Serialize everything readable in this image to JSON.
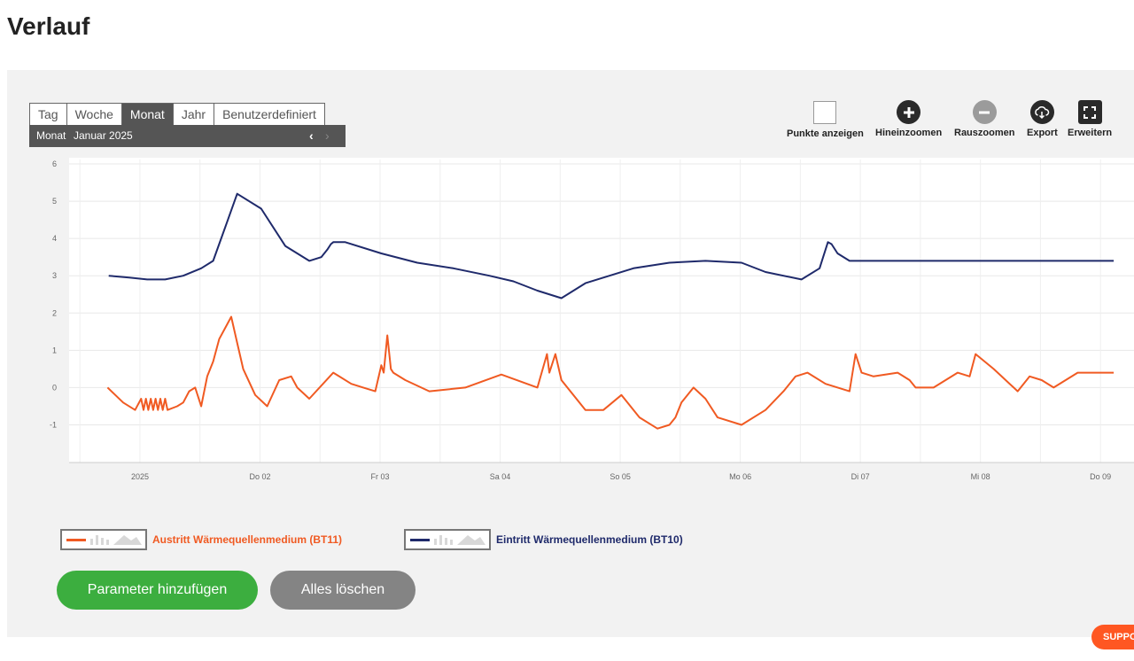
{
  "page": {
    "title": "Verlauf"
  },
  "range_tabs": [
    {
      "label": "Tag",
      "active": false
    },
    {
      "label": "Woche",
      "active": false
    },
    {
      "label": "Monat",
      "active": true
    },
    {
      "label": "Jahr",
      "active": false
    },
    {
      "label": "Benutzerdefiniert",
      "active": false
    }
  ],
  "period": {
    "label": "Monat",
    "value": "Januar 2025",
    "prev_icon": "chevron-left-icon",
    "next_icon": "chevron-right-icon"
  },
  "tools": {
    "show_points": {
      "label": "Punkte anzeigen",
      "icon": "checkbox-icon",
      "checked": false
    },
    "zoom_in": {
      "label": "Hineinzoomen",
      "icon": "plus-circle-icon"
    },
    "zoom_out": {
      "label": "Rauszoomen",
      "icon": "minus-circle-icon",
      "disabled": true
    },
    "export": {
      "label": "Export",
      "icon": "cloud-download-icon"
    },
    "expand": {
      "label": "Erweitern",
      "icon": "fullscreen-icon"
    }
  },
  "chart_data": {
    "type": "line",
    "ylim": [
      -1.7,
      6
    ],
    "yticks": [
      "6",
      "5",
      "4",
      "3",
      "2",
      "1",
      "0",
      "-1"
    ],
    "xlim": [
      0,
      8.8
    ],
    "xticks": [
      {
        "x": 0.59,
        "label": "2025"
      },
      {
        "x": 1.59,
        "label": "Do 02"
      },
      {
        "x": 2.59,
        "label": "Fr 03"
      },
      {
        "x": 3.59,
        "label": "Sa 04"
      },
      {
        "x": 4.59,
        "label": "So 05"
      },
      {
        "x": 5.59,
        "label": "Mo 06"
      },
      {
        "x": 6.59,
        "label": "Di 07"
      },
      {
        "x": 7.59,
        "label": "Mi 08"
      },
      {
        "x": 8.59,
        "label": "Do 09"
      }
    ],
    "grid": true,
    "series": [
      {
        "name": "Eintritt Wärmequellenmedium (BT10)",
        "color": "#1f2a6b",
        "x": [
          0.33,
          0.5,
          0.65,
          0.8,
          0.95,
          1.1,
          1.2,
          1.3,
          1.4,
          1.6,
          1.8,
          2.0,
          2.1,
          2.15,
          2.18,
          2.2,
          2.3,
          2.6,
          2.9,
          3.2,
          3.5,
          3.7,
          3.9,
          4.1,
          4.3,
          4.5,
          4.7,
          5.0,
          5.3,
          5.6,
          5.8,
          6.1,
          6.25,
          6.28,
          6.32,
          6.35,
          6.4,
          6.5,
          6.7,
          7.0,
          7.5,
          8.0,
          8.6,
          8.7
        ],
        "y": [
          3.0,
          2.95,
          2.9,
          2.9,
          3.0,
          3.2,
          3.4,
          4.3,
          5.2,
          4.8,
          3.8,
          3.4,
          3.5,
          3.7,
          3.85,
          3.9,
          3.9,
          3.6,
          3.35,
          3.2,
          3.0,
          2.85,
          2.6,
          2.4,
          2.8,
          3.0,
          3.2,
          3.35,
          3.4,
          3.35,
          3.1,
          2.9,
          3.2,
          3.5,
          3.9,
          3.85,
          3.6,
          3.4,
          3.4,
          3.4,
          3.4,
          3.4,
          3.4,
          3.4
        ]
      },
      {
        "name": "Austritt Wärmequellenmedium (BT11)",
        "color": "#f05a22",
        "x": [
          0.32,
          0.45,
          0.55,
          0.6,
          0.62,
          0.64,
          0.66,
          0.68,
          0.7,
          0.72,
          0.74,
          0.76,
          0.78,
          0.8,
          0.82,
          0.9,
          0.95,
          1.0,
          1.05,
          1.1,
          1.15,
          1.2,
          1.25,
          1.3,
          1.35,
          1.4,
          1.45,
          1.55,
          1.65,
          1.75,
          1.85,
          1.9,
          2.0,
          2.2,
          2.35,
          2.45,
          2.55,
          2.6,
          2.62,
          2.65,
          2.68,
          2.7,
          2.8,
          3.0,
          3.3,
          3.6,
          3.9,
          3.98,
          4.0,
          4.05,
          4.1,
          4.3,
          4.45,
          4.6,
          4.75,
          4.9,
          5.0,
          5.05,
          5.1,
          5.2,
          5.3,
          5.4,
          5.6,
          5.8,
          5.95,
          6.05,
          6.15,
          6.3,
          6.5,
          6.55,
          6.6,
          6.7,
          6.9,
          7.0,
          7.05,
          7.2,
          7.4,
          7.5,
          7.55,
          7.7,
          7.9,
          8.0,
          8.1,
          8.2,
          8.4,
          8.6,
          8.7
        ],
        "y": [
          0.0,
          -0.4,
          -0.6,
          -0.3,
          -0.6,
          -0.3,
          -0.6,
          -0.3,
          -0.6,
          -0.3,
          -0.6,
          -0.3,
          -0.6,
          -0.3,
          -0.6,
          -0.5,
          -0.4,
          -0.1,
          0.0,
          -0.5,
          0.3,
          0.7,
          1.3,
          1.6,
          1.9,
          1.2,
          0.5,
          -0.2,
          -0.5,
          0.2,
          0.3,
          0.0,
          -0.3,
          0.4,
          0.1,
          0.0,
          -0.1,
          0.6,
          0.4,
          1.4,
          0.5,
          0.4,
          0.2,
          -0.1,
          0.0,
          0.35,
          0.0,
          0.9,
          0.4,
          0.9,
          0.2,
          -0.6,
          -0.6,
          -0.2,
          -0.8,
          -1.1,
          -1.0,
          -0.8,
          -0.4,
          0.0,
          -0.3,
          -0.8,
          -1.0,
          -0.6,
          -0.1,
          0.3,
          0.4,
          0.1,
          -0.1,
          0.9,
          0.4,
          0.3,
          0.4,
          0.2,
          0.0,
          0.0,
          0.4,
          0.3,
          0.9,
          0.5,
          -0.1,
          0.3,
          0.2,
          0.0,
          0.4,
          0.4,
          0.4
        ]
      }
    ]
  },
  "legend": [
    {
      "name": "Austritt Wärmequellenmedium (BT11)",
      "color": "#f05a22"
    },
    {
      "name": "Eintritt Wärmequellenmedium (BT10)",
      "color": "#1f2a6b"
    }
  ],
  "buttons": {
    "add_param": "Parameter hinzufügen",
    "clear_all": "Alles löschen"
  },
  "support": {
    "label": "SUPPORT"
  }
}
